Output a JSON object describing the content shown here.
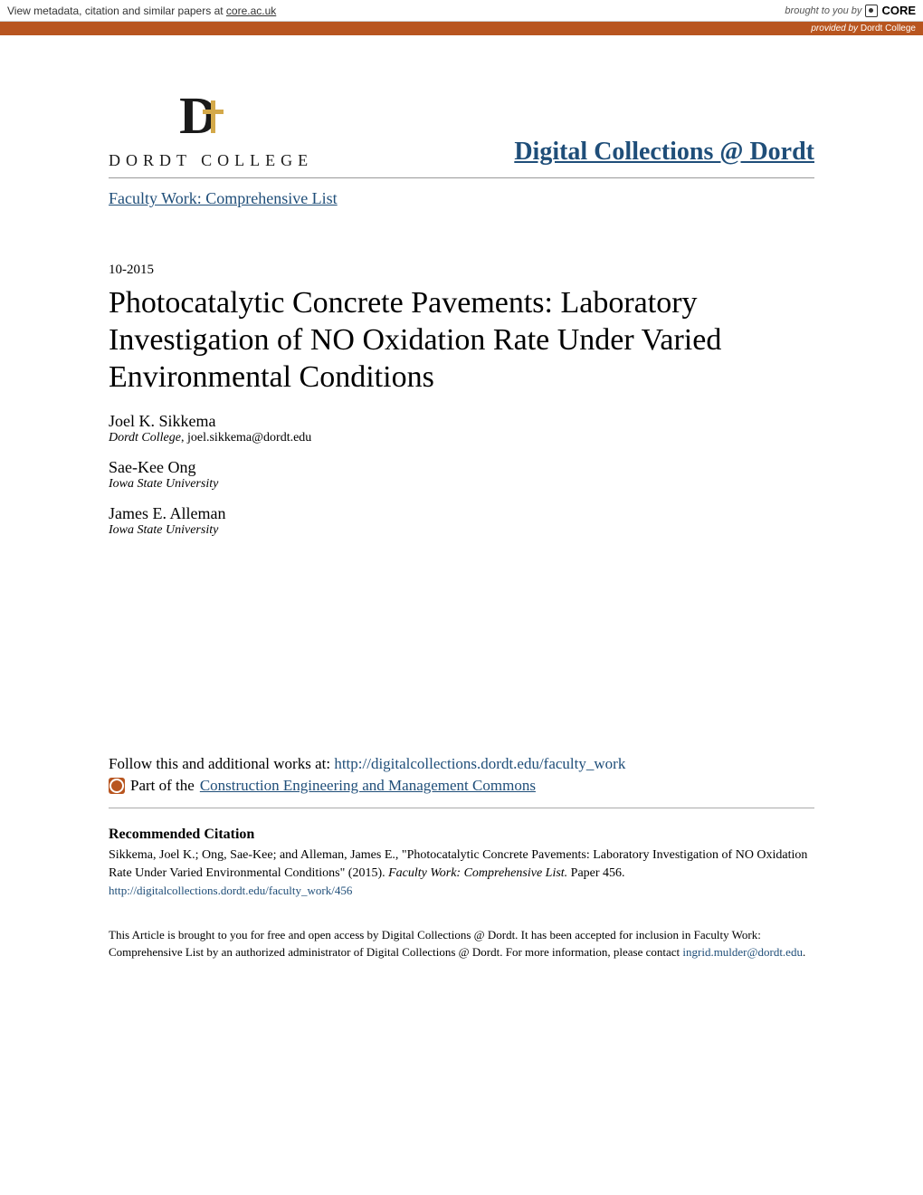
{
  "topBanner": {
    "leftPrefix": "View metadata, citation and similar papers at ",
    "coreLink": "core.ac.uk",
    "broughtBy": "brought to you by",
    "coreBrand": "CORE"
  },
  "orangeBar": {
    "providedBy": "provided by ",
    "provider": "Dordt College"
  },
  "header": {
    "logoText": "DORDT COLLEGE",
    "siteTitle": "Digital Collections @ Dordt",
    "breadcrumb": "Faculty Work: Comprehensive List"
  },
  "paper": {
    "date": "10-2015",
    "title": "Photocatalytic Concrete Pavements: Laboratory Investigation of NO Oxidation Rate Under Varied Environmental Conditions",
    "authors": [
      {
        "name": "Joel K. Sikkema",
        "affiliation": "Dordt College",
        "email": ", joel.sikkema@dordt.edu"
      },
      {
        "name": "Sae-Kee Ong",
        "affiliation": "Iowa State University",
        "email": ""
      },
      {
        "name": "James E. Alleman",
        "affiliation": "Iowa State University",
        "email": ""
      }
    ]
  },
  "follow": {
    "prefix": "Follow this and additional works at: ",
    "url": "http://digitalcollections.dordt.edu/faculty_work",
    "partOfPrefix": "Part of the ",
    "partOfLink": "Construction Engineering and Management Commons"
  },
  "citation": {
    "heading": "Recommended Citation",
    "text": "Sikkema, Joel K.; Ong, Sae-Kee; and Alleman, James E., \"Photocatalytic Concrete Pavements: Laboratory Investigation of NO Oxidation Rate Under Varied Environmental Conditions\" (2015). ",
    "seriesTitle": "Faculty Work: Comprehensive List.",
    "paperNum": " Paper 456.",
    "link": "http://digitalcollections.dordt.edu/faculty_work/456"
  },
  "footer": {
    "text": "This Article is brought to you for free and open access by Digital Collections @ Dordt. It has been accepted for inclusion in Faculty Work: Comprehensive List by an authorized administrator of Digital Collections @ Dordt. For more information, please contact ",
    "contactEmail": "ingrid.mulder@dordt.edu",
    "period": "."
  },
  "colors": {
    "linkBlue": "#1f4e79",
    "orangeBar": "#b8551f",
    "text": "#000000"
  }
}
